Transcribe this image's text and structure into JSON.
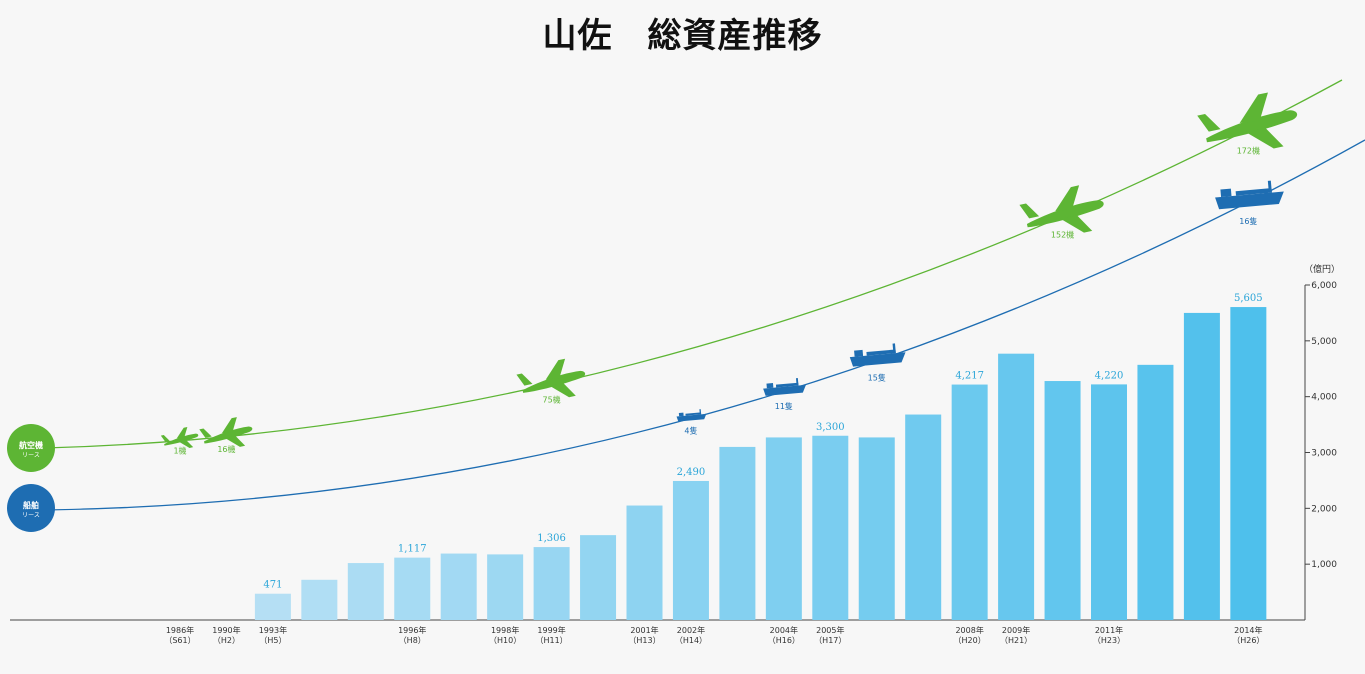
{
  "title": "山佐　総資産推移",
  "chart_data": {
    "type": "bar",
    "unit_label": "（億円）",
    "ylim": [
      0,
      6000
    ],
    "yticks": [
      "1,000",
      "2,000",
      "3,000",
      "4,000",
      "5,000",
      "6,000"
    ],
    "values": [
      0,
      0,
      471,
      720,
      1020,
      1117,
      1190,
      1175,
      1306,
      1520,
      2050,
      2490,
      3100,
      3270,
      3300,
      3270,
      3680,
      4217,
      4770,
      4280,
      4220,
      4570,
      5500,
      5605
    ],
    "value_labels": [
      "",
      "",
      "471",
      "",
      "",
      "1,117",
      "",
      "",
      "1,306",
      "",
      "",
      "2,490",
      "",
      "",
      "3,300",
      "",
      "",
      "4,217",
      "",
      "",
      "4,220",
      "",
      "",
      "5,605"
    ],
    "x_year_labels": [
      "1986年",
      "1990年",
      "1993年",
      "",
      "",
      "1996年",
      "",
      "1998年",
      "1999年",
      "",
      "2001年",
      "2002年",
      "",
      "2004年",
      "2005年",
      "",
      "",
      "2008年",
      "2009年",
      "",
      "2011年",
      "",
      "",
      "2014年"
    ],
    "x_era_labels": [
      "（S61）",
      "（H2）",
      "（H5）",
      "",
      "",
      "（H8）",
      "",
      "（H10）",
      "（H11）",
      "",
      "（H13）",
      "（H14）",
      "",
      "（H16）",
      "（H17）",
      "",
      "",
      "（H20）",
      "（H21）",
      "",
      "（H23）",
      "",
      "",
      "（H26）"
    ],
    "colors": {
      "bar_start": "#bfe2f5",
      "bar_end": "#4ec0ec",
      "aircraft": "#5db534",
      "ship": "#1e6db2",
      "value_label": "#2aa5d8"
    },
    "aircraft_line": {
      "badge_label": "航空機",
      "badge_sub": "リース",
      "markers": [
        {
          "label": "1機",
          "bar_index": 0
        },
        {
          "label": "16機",
          "bar_index": 1
        },
        {
          "label": "75機",
          "bar_index": 8
        },
        {
          "label": "152機",
          "bar_index": 19
        },
        {
          "label": "172機",
          "bar_index": 23
        }
      ]
    },
    "ship_line": {
      "badge_label": "船舶",
      "badge_sub": "リース",
      "markers": [
        {
          "label": "4隻",
          "bar_index": 11
        },
        {
          "label": "11隻",
          "bar_index": 13
        },
        {
          "label": "15隻",
          "bar_index": 15
        },
        {
          "label": "16隻",
          "bar_index": 23
        }
      ]
    }
  }
}
